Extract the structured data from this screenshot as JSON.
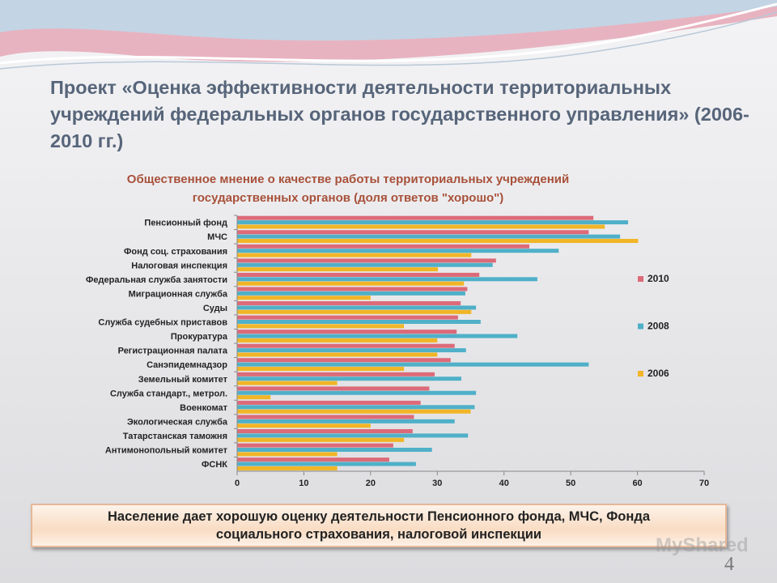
{
  "title": "Проект «Оценка эффективности деятельности территориальных учреждений федеральных органов государственного управления» (2006-2010 гг.)",
  "chart_data": {
    "type": "hbar",
    "title": "Общественное мнение о качестве работы территориальных учреждений государственных органов (доля ответов \"хорошо\")",
    "categories": [
      "Пенсионный фонд",
      "МЧС",
      "Фонд соц. страхования",
      "Налоговая инспекция",
      "Федеральная служба занятости",
      "Миграционная служба",
      "Суды",
      "Служба судебных приставов",
      "Прокуратура",
      "Регистрационная палата",
      "Санэпидемнадзор",
      "Земельный комитет",
      "Служба стандарт., метрол.",
      "Военкомат",
      "Экологическая служба",
      "Татарстанская таможня",
      "Антимонопольный комитет",
      "ФСНК"
    ],
    "series": [
      {
        "name": "2010",
        "color": "#dc6a78",
        "values": [
          53.4,
          52.7,
          43.8,
          38.8,
          36.3,
          34.5,
          33.5,
          33.1,
          32.9,
          32.6,
          32,
          29.6,
          28.8,
          27.5,
          26.5,
          26.3,
          23.4,
          22.8
        ]
      },
      {
        "name": "2008",
        "color": "#4fb0c8",
        "values": [
          58.6,
          57.4,
          48.2,
          38.3,
          45,
          34.2,
          35.8,
          36.5,
          42,
          34.3,
          52.7,
          33.6,
          35.8,
          35.6,
          32.6,
          34.6,
          29.2,
          26.8
        ]
      },
      {
        "name": "2006",
        "color": "#f1b526",
        "values": [
          55.1,
          60.1,
          35.1,
          30.1,
          34,
          20,
          35.1,
          25,
          30,
          30,
          25,
          15,
          5,
          35,
          20,
          25,
          15,
          15
        ]
      }
    ],
    "xlim": [
      0,
      70
    ],
    "xticks": [
      0,
      10,
      20,
      30,
      40,
      50,
      60,
      70
    ],
    "legend": "right"
  },
  "footer": "Население дает хорошую оценку деятельности Пенсионного фонда, МЧС, Фонда социального страхования, налоговой инспекции",
  "watermark": "MyShared",
  "page_number": "4"
}
